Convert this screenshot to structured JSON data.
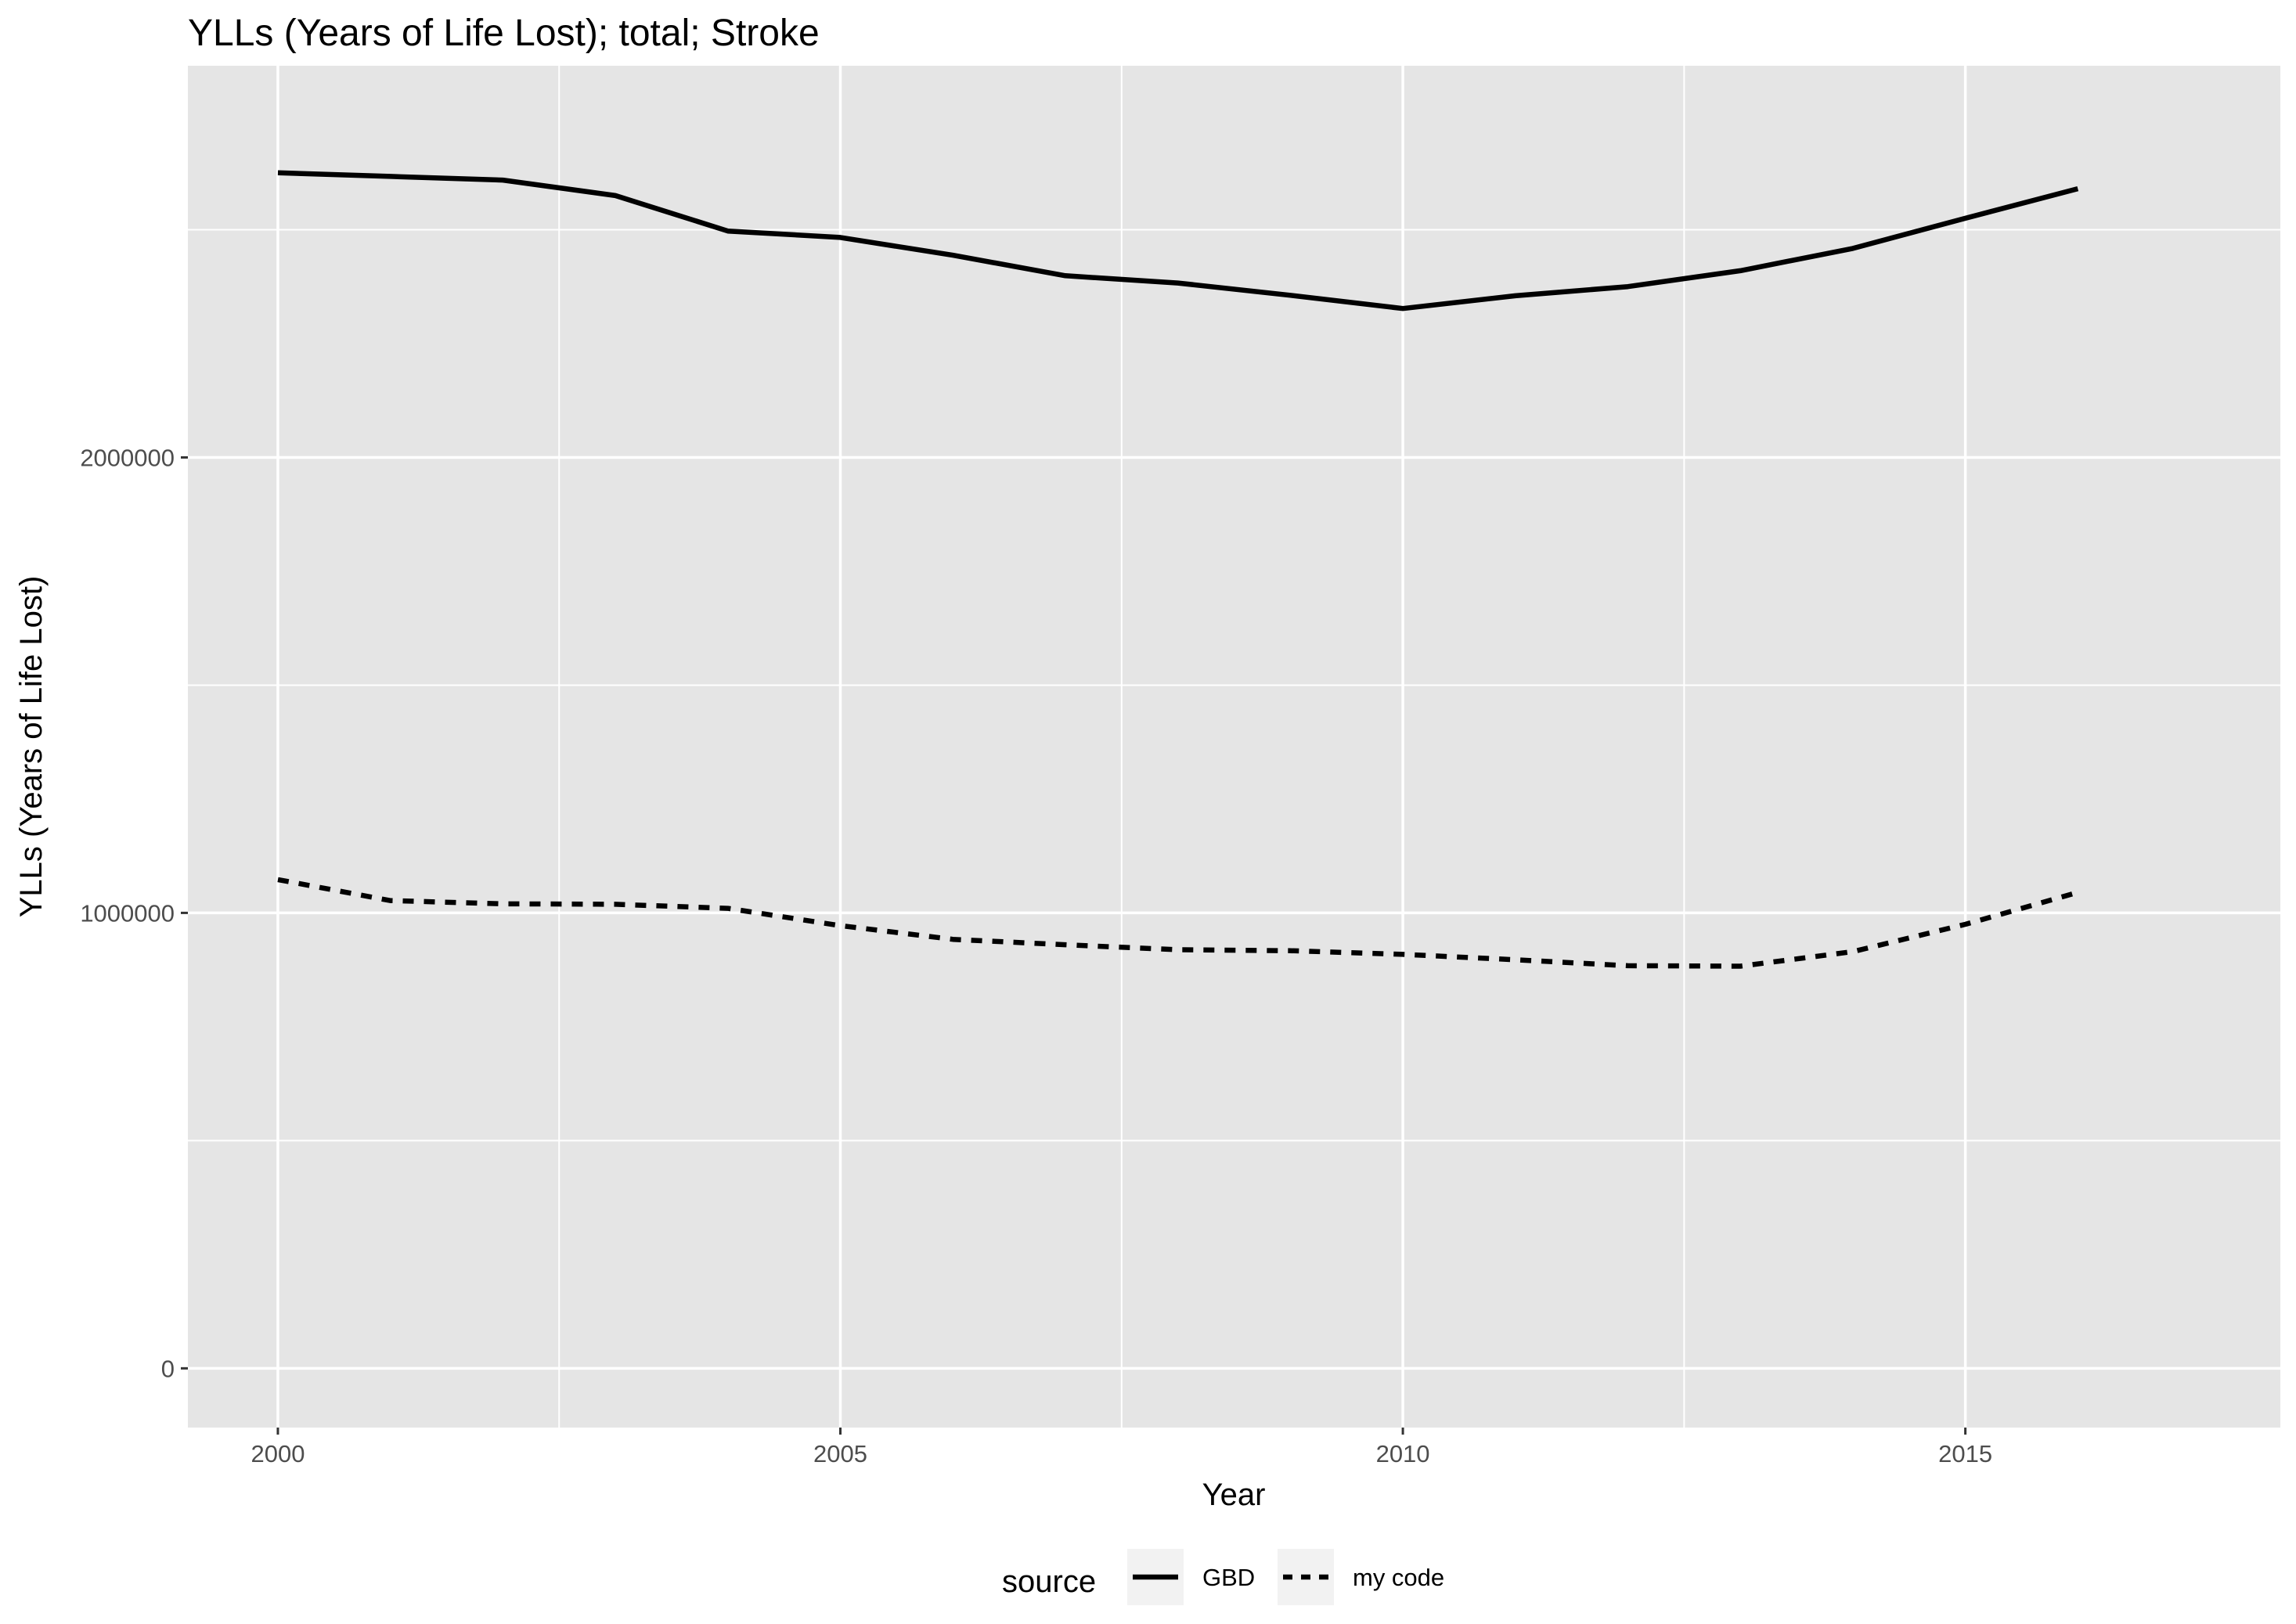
{
  "chart_data": {
    "type": "line",
    "title": "YLLs (Years of Life Lost); total; Stroke",
    "xlabel": "Year",
    "ylabel": "YLLs (Years of Life Lost)",
    "xlim": [
      1999.2,
      2017.8
    ],
    "ylim": [
      -130000,
      2860000
    ],
    "x_ticks": [
      2000,
      2005,
      2010,
      2015
    ],
    "y_ticks": [
      0,
      1000000,
      2000000
    ],
    "x_tick_labels": [
      "2000",
      "2005",
      "2010",
      "2015"
    ],
    "y_tick_labels": [
      "0",
      "1000000",
      "2000000"
    ],
    "grid": true,
    "legend": {
      "title": "source",
      "position": "bottom"
    },
    "x": [
      2000,
      2001,
      2002,
      2003,
      2004,
      2005,
      2006,
      2007,
      2008,
      2009,
      2010,
      2011,
      2012,
      2013,
      2014,
      2015,
      2016
    ],
    "series": [
      {
        "name": "GBD",
        "linetype": "solid",
        "values": [
          2625000,
          2617000,
          2609000,
          2575000,
          2497000,
          2483000,
          2444000,
          2399000,
          2383000,
          2356000,
          2327000,
          2355000,
          2375000,
          2410000,
          2459000,
          2525000,
          2590000
        ]
      },
      {
        "name": "my code",
        "linetype": "dashed",
        "values": [
          1073000,
          1027000,
          1020000,
          1019000,
          1010000,
          972000,
          942000,
          930000,
          919000,
          917000,
          909000,
          897000,
          884000,
          883000,
          915000,
          975000,
          1045000
        ]
      }
    ],
    "colors": {
      "panel": "#e5e5e5",
      "grid": "#ffffff",
      "line": "#000000",
      "tick_text": "#4d4d4d"
    }
  }
}
